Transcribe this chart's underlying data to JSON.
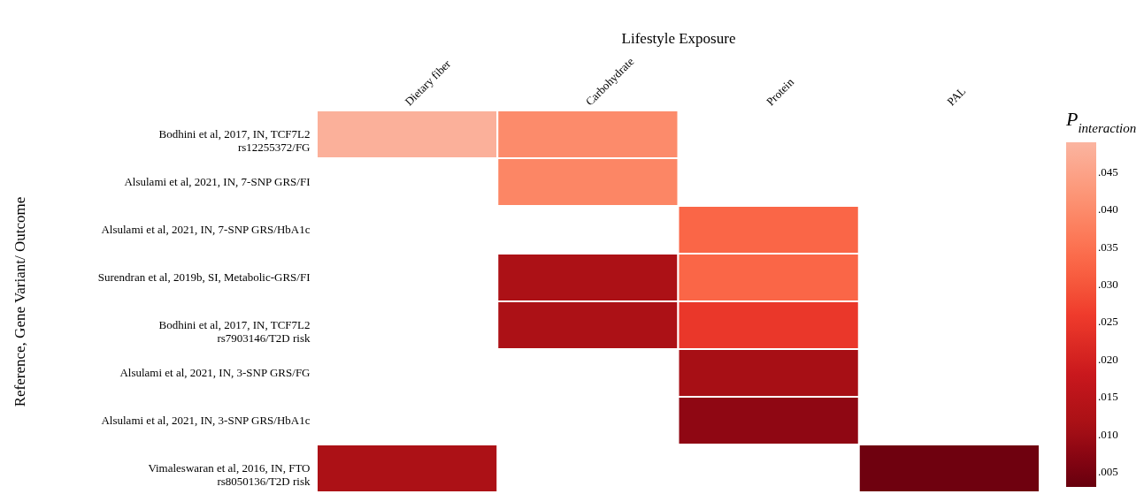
{
  "chart_data": {
    "type": "heatmap",
    "xlabel": "Lifestyle Exposure",
    "ylabel": "Reference, Gene Variant/ Outcome",
    "clabel": "P$_{interaction}$",
    "categories": [
      "Dietary fiber",
      "Carbohydrate",
      "Protein",
      "PAL"
    ],
    "y_categories": [
      "Bodhini et al, 2017, IN, TCF7L2\nrs12255372/FG",
      "Alsulami et al, 2021, IN, 7-SNP GRS/FI",
      "Alsulami et al, 2021, IN, 7-SNP GRS/HbA1c",
      "Surendran et al, 2019b, SI, Metabolic-GRS/FI",
      "Bodhini et al, 2017, IN, TCF7L2\nrs7903146/T2D risk",
      "Alsulami et al, 2021, IN, 3-SNP GRS/FG",
      "Alsulami et al, 2021, IN, 3-SNP GRS/HbA1c",
      "Vimaleswaran et al, 2016, IN, FTO\nrs8050136/T2D risk"
    ],
    "cells": [
      [
        0.048,
        0.04,
        null,
        null
      ],
      [
        null,
        0.039,
        null,
        null
      ],
      [
        null,
        null,
        0.033,
        null
      ],
      [
        null,
        0.012,
        0.033,
        null
      ],
      [
        null,
        0.012,
        0.025,
        null
      ],
      [
        null,
        null,
        0.011,
        null
      ],
      [
        null,
        null,
        0.008,
        null
      ],
      [
        0.012,
        null,
        null,
        0.004
      ]
    ],
    "clim": [
      0.003,
      0.049
    ],
    "cticks": [
      {
        "value": 0.005,
        "label": ".005"
      },
      {
        "value": 0.01,
        "label": ".010"
      },
      {
        "value": 0.015,
        "label": ".015"
      },
      {
        "value": 0.02,
        "label": ".020"
      },
      {
        "value": 0.025,
        "label": ".025"
      },
      {
        "value": 0.03,
        "label": ".030"
      },
      {
        "value": 0.035,
        "label": ".035"
      },
      {
        "value": 0.04,
        "label": ".040"
      },
      {
        "value": 0.045,
        "label": ".045"
      }
    ],
    "grid": false
  }
}
